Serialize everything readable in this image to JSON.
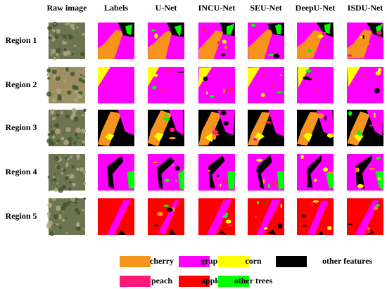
{
  "columns": [
    "Raw image",
    "Labels",
    "U-Net",
    "INCU-Net",
    "SEU-Net",
    "DeepU-Net",
    "ISDU-Net"
  ],
  "rows": [
    "Region 1",
    "Region 2",
    "Region 3",
    "Region 4",
    "Region 5"
  ],
  "legend": [
    {
      "label": "cherry",
      "color": "#f7941d"
    },
    {
      "label": "grape",
      "color": "#ff00ff"
    },
    {
      "label": "corn",
      "color": "#ffff00"
    },
    {
      "label": "other features",
      "color": "#000000"
    },
    {
      "label": "peach",
      "color": "#ff1a7a"
    },
    {
      "label": "apple",
      "color": "#ff0000"
    },
    {
      "label": "other trees",
      "color": "#00ff00"
    }
  ]
}
